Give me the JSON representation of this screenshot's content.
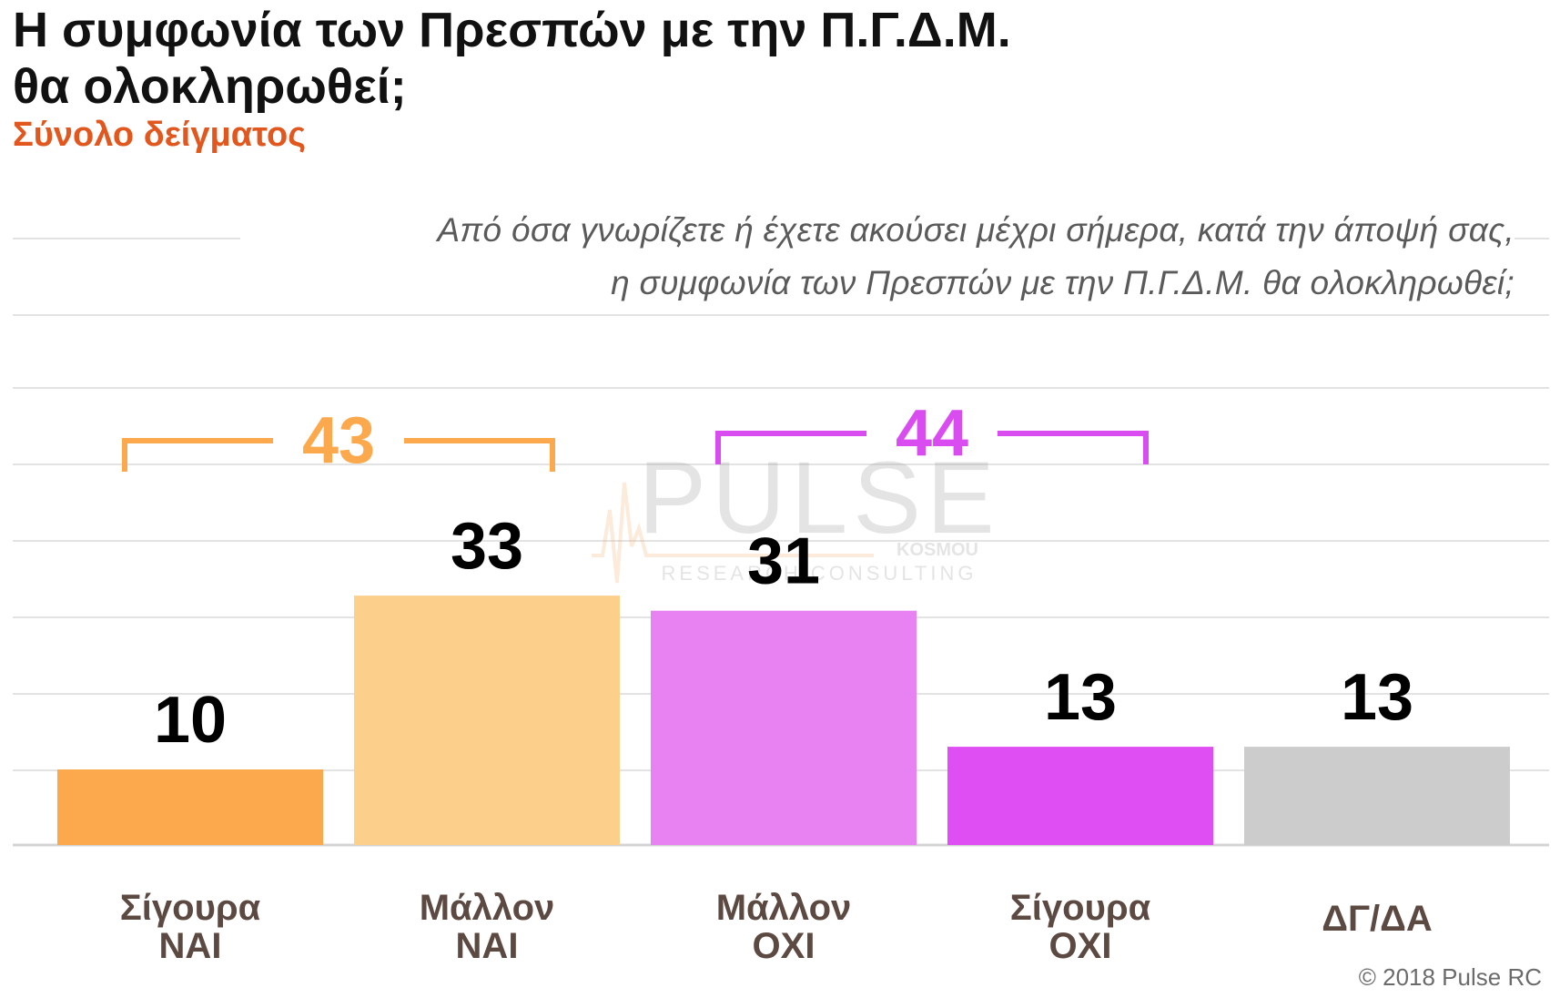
{
  "header": {
    "title_line1": "Η συμφωνία των Πρεσπών με την Π.Γ.Δ.Μ.",
    "title_line2": "θα ολοκληρωθεί;",
    "subtitle": "Σύνολο δείγματος",
    "question_line1": "Από όσα γνωρίζετε ή έχετε ακούσει μέχρι σήμερα, κατά την άποψή σας,",
    "question_line2": "η συμφωνία των Πρεσπών με την Π.Γ.Δ.Μ. θα ολοκληρωθεί;"
  },
  "footer": {
    "copyright": "© 2018 Pulse RC"
  },
  "watermark": {
    "brand": "PULSE",
    "sub": "RESEARCH CONSULTING",
    "tag": "KOSMOU"
  },
  "chart_data": {
    "type": "bar",
    "categories": [
      [
        "Σίγουρα",
        "ΝΑΙ"
      ],
      [
        "Μάλλον",
        "ΝΑΙ"
      ],
      [
        "Μάλλον",
        "ΟΧΙ"
      ],
      [
        "Σίγουρα",
        "ΟΧΙ"
      ],
      [
        "ΔΓ/ΔΑ"
      ]
    ],
    "values": [
      10,
      33,
      31,
      13,
      13
    ],
    "colors": [
      "#fba94c",
      "#fcd08a",
      "#e882f2",
      "#de4ef2",
      "#cccccc"
    ],
    "ylim": [
      0,
      60
    ],
    "grid": true,
    "groups": [
      {
        "label": "43",
        "from": 0,
        "to": 1,
        "color": "#fba94c"
      },
      {
        "label": "44",
        "from": 2,
        "to": 3,
        "color": "#d84cf0"
      }
    ]
  }
}
